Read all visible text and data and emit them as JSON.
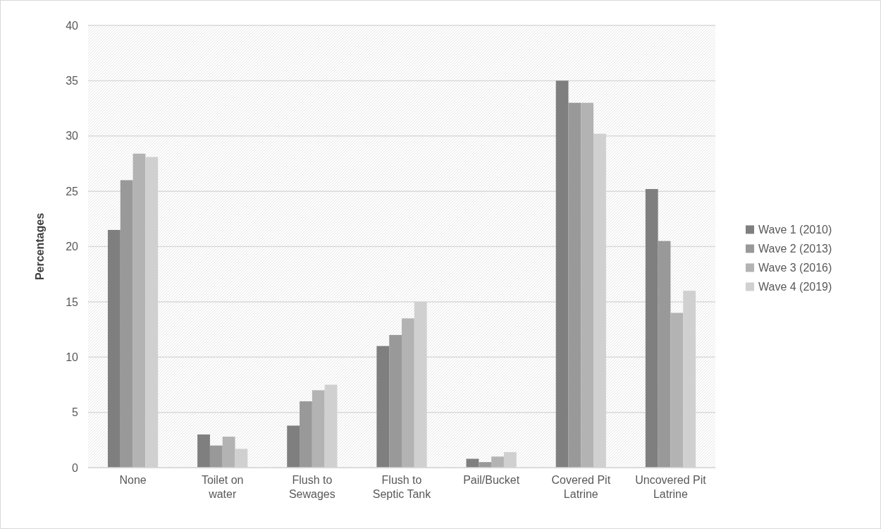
{
  "chart_data": {
    "type": "bar",
    "ylabel": "Percentages",
    "categories": [
      "None",
      "Toilet on water",
      "Flush to Sewages",
      "Flush to Septic Tank",
      "Pail/Bucket",
      "Covered Pit Latrine",
      "Uncovered Pit Latrine"
    ],
    "series": [
      {
        "name": "Wave 1 (2010)",
        "color": "#7f7f7f",
        "values": [
          21.5,
          3,
          3.8,
          11,
          0.8,
          35,
          25.2
        ]
      },
      {
        "name": "Wave 2 (2013)",
        "color": "#999999",
        "values": [
          26,
          2,
          6,
          12,
          0.5,
          33,
          20.5
        ]
      },
      {
        "name": "Wave 3 (2016)",
        "color": "#b3b3b3",
        "values": [
          28.4,
          2.8,
          7,
          13.5,
          1,
          33,
          14
        ]
      },
      {
        "name": "Wave 4 (2019)",
        "color": "#d0d0d0",
        "values": [
          28.1,
          1.7,
          7.5,
          15,
          1.4,
          30.2,
          16
        ]
      }
    ],
    "ylim": [
      0,
      40
    ],
    "yticks": [
      0,
      5,
      10,
      15,
      20,
      25,
      30,
      35,
      40
    ],
    "grid": "y",
    "legend": "right"
  }
}
